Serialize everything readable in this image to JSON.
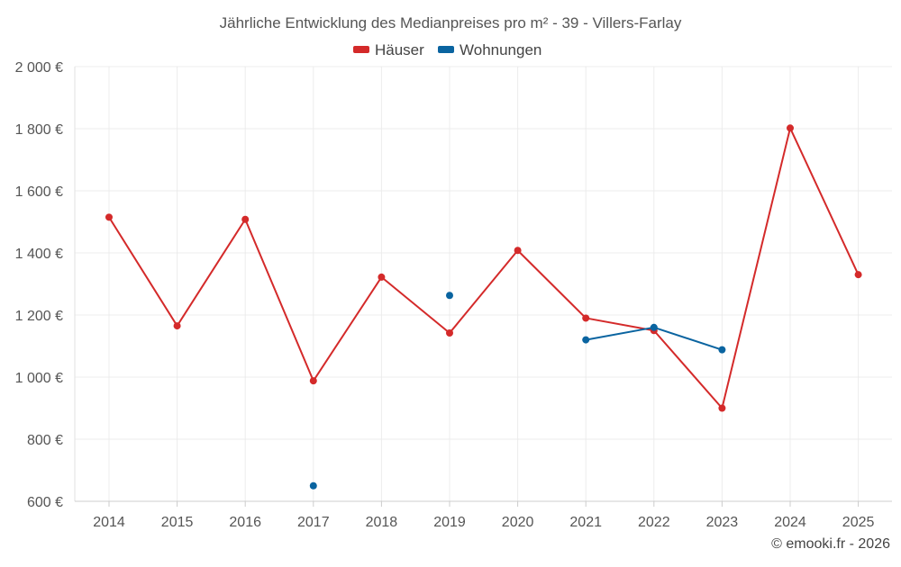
{
  "chart_data": {
    "type": "line",
    "title": "Jährliche Entwicklung des Medianpreises pro m² - 39 - Villers-Farlay",
    "categories": [
      "2014",
      "2015",
      "2016",
      "2017",
      "2018",
      "2019",
      "2020",
      "2021",
      "2022",
      "2023",
      "2024",
      "2025"
    ],
    "series": [
      {
        "name": "Häuser",
        "color": "#d42a2a",
        "values": [
          1515,
          1165,
          1508,
          988,
          1322,
          1142,
          1408,
          1190,
          1150,
          900,
          1802,
          1330
        ]
      },
      {
        "name": "Wohnungen",
        "color": "#0a64a0",
        "values": [
          null,
          null,
          null,
          650,
          null,
          1263,
          null,
          1120,
          1160,
          1088,
          null,
          null
        ]
      }
    ],
    "y_ticks": [
      "600 €",
      "800 €",
      "1 000 €",
      "1 200 €",
      "1 400 €",
      "1 600 €",
      "1 800 €",
      "2 000 €"
    ],
    "ylim": [
      600,
      2000
    ],
    "xlabel": "",
    "ylabel": "",
    "grid": true,
    "legend_position": "top-center"
  },
  "credit": "© emooki.fr - 2026"
}
